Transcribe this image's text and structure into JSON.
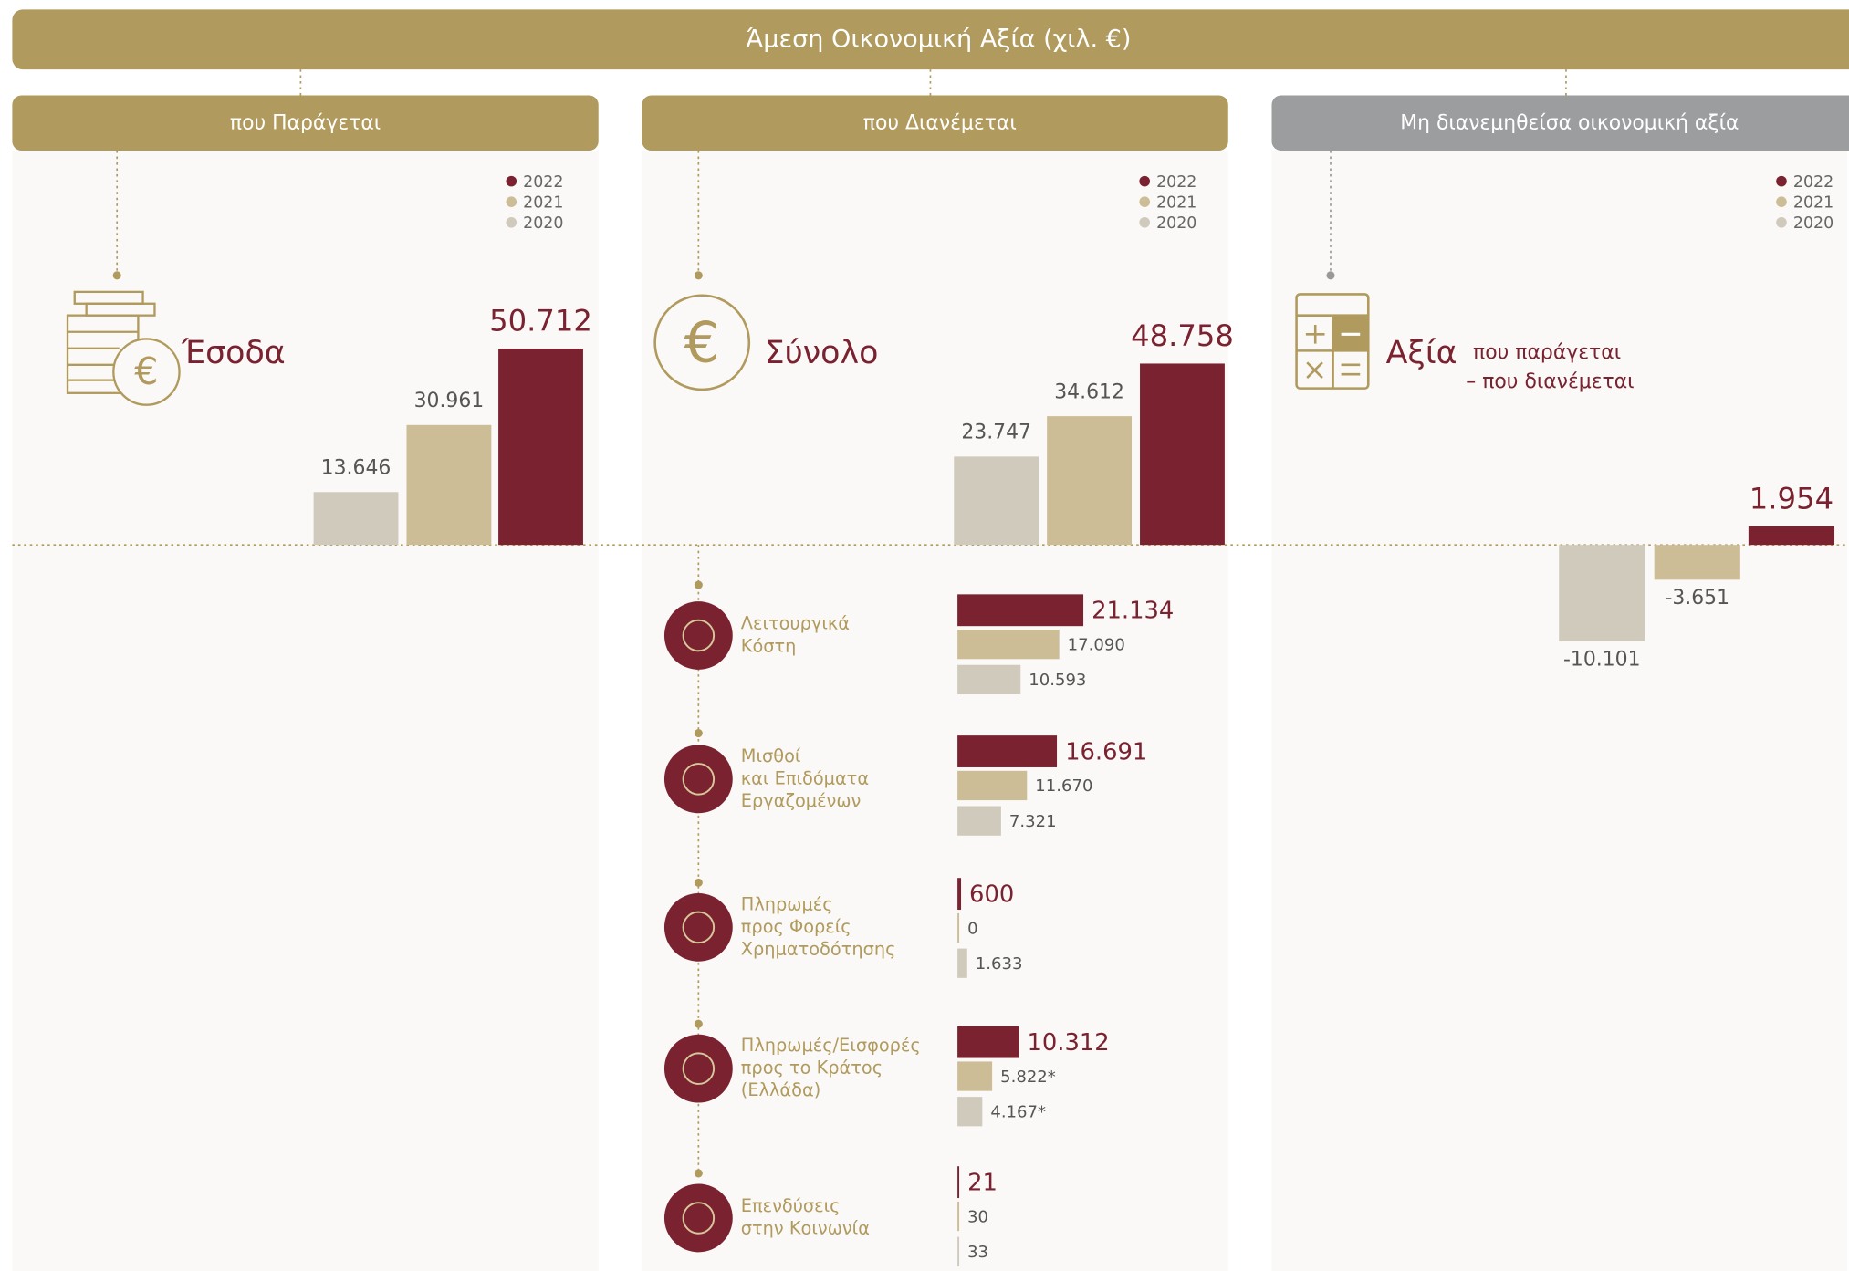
{
  "title": "Άμεση Οικονομική Αξία (χιλ. €)",
  "panels": [
    "που Παράγεται",
    "που Διανέμεται",
    "Μη διανεμηθείσα οικονομική αξία"
  ],
  "chart_data": [
    {
      "type": "bar",
      "title": "Έσοδα",
      "categories": [
        "2020",
        "2021",
        "2022"
      ],
      "colors": [
        "#cfcabc",
        "#cdbd96",
        "#7a2230"
      ],
      "values": [
        13646,
        30961,
        50712
      ],
      "value_labels": [
        "13.646",
        "30.961",
        "50.712"
      ]
    },
    {
      "type": "bar",
      "title": "Σύνολο",
      "categories": [
        "2020",
        "2021",
        "2022"
      ],
      "colors": [
        "#cfcabc",
        "#cdbd96",
        "#7a2230"
      ],
      "values": [
        23747,
        34612,
        48758
      ],
      "value_labels": [
        "23.747",
        "34.612",
        "48.758"
      ]
    },
    {
      "type": "bar",
      "title": "Αξία",
      "subtitle": [
        "που παράγεται",
        "– που διανέμεται"
      ],
      "categories": [
        "2020",
        "2021",
        "2022"
      ],
      "colors": [
        "#cfcabc",
        "#cdbd96",
        "#7a2230"
      ],
      "values": [
        -10101,
        -3651,
        1954
      ],
      "value_labels": [
        "-10.101",
        "-3.651",
        "1.954"
      ]
    },
    {
      "type": "hbar",
      "title": [
        "Λειτουργικά",
        "Κόστη"
      ],
      "colors": [
        "#7a2230",
        "#cdbd96",
        "#cfcabc"
      ],
      "values": [
        21134,
        17090,
        10593
      ],
      "value_labels": [
        "21.134",
        "17.090",
        "10.593"
      ]
    },
    {
      "type": "hbar",
      "title": [
        "Μισθοί",
        "και Επιδόματα",
        "Εργαζομένων"
      ],
      "colors": [
        "#7a2230",
        "#cdbd96",
        "#cfcabc"
      ],
      "values": [
        16691,
        11670,
        7321
      ],
      "value_labels": [
        "16.691",
        "11.670",
        "7.321"
      ]
    },
    {
      "type": "hbar",
      "title": [
        "Πληρωμές",
        "προς Φορείς",
        "Χρηματοδότησης"
      ],
      "colors": [
        "#7a2230",
        "#cdbd96",
        "#cfcabc"
      ],
      "values": [
        600,
        0,
        1633
      ],
      "value_labels": [
        "600",
        "0",
        "1.633"
      ]
    },
    {
      "type": "hbar",
      "title": [
        "Πληρωμές/Εισφορές",
        "προς το Κράτος",
        "(Ελλάδα)"
      ],
      "colors": [
        "#7a2230",
        "#cdbd96",
        "#cfcabc"
      ],
      "values": [
        10312,
        5822,
        4167
      ],
      "value_labels": [
        "10.312",
        "5.822*",
        "4.167*"
      ]
    },
    {
      "type": "hbar",
      "title": [
        "Επενδύσεις",
        "στην Κοινωνία"
      ],
      "colors": [
        "#7a2230",
        "#cdbd96",
        "#cfcabc"
      ],
      "values": [
        21,
        30,
        33
      ]
    }
  ]
}
